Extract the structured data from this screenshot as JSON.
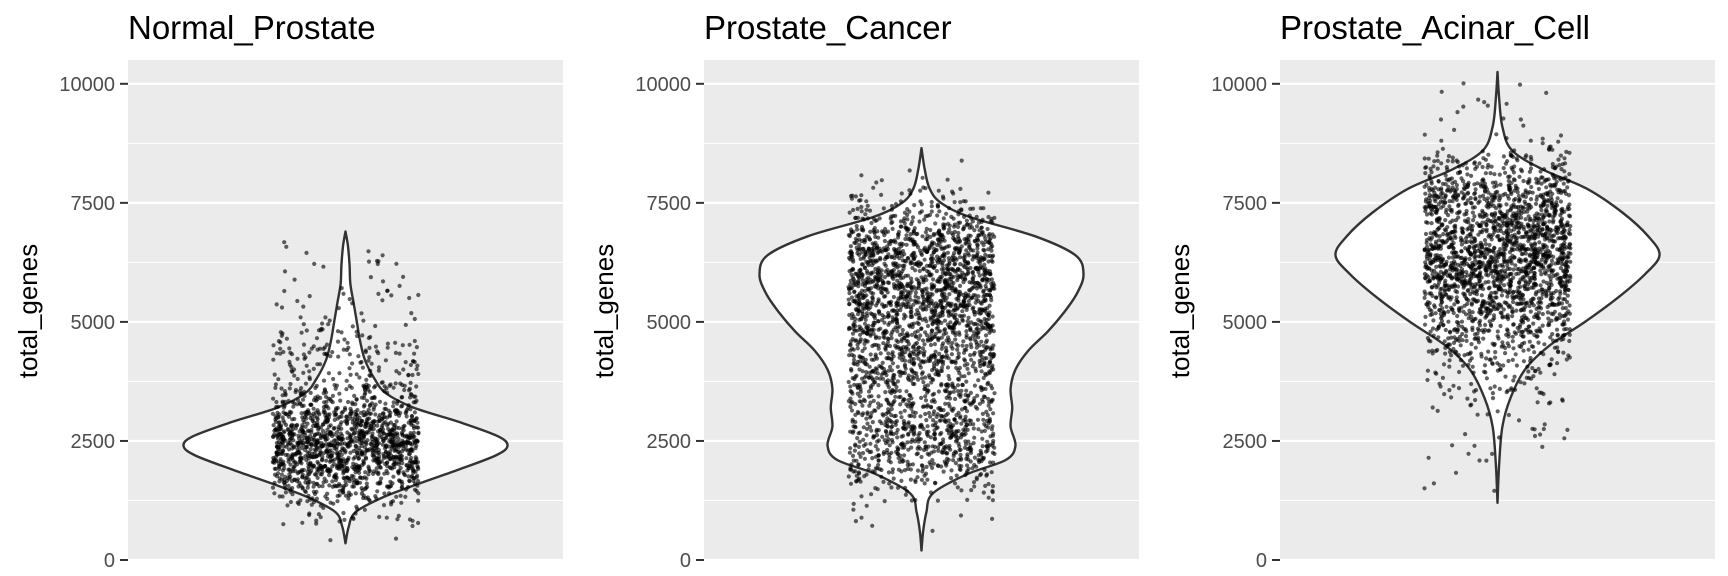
{
  "chart_data": [
    {
      "type": "violin",
      "title": "Normal_Prostate",
      "xlabel": "",
      "ylabel": "total_genes",
      "ylim": [
        0,
        10500
      ],
      "yticks": [
        0,
        2500,
        5000,
        7500,
        10000
      ],
      "y_tick_labels": [
        "0",
        "2500",
        "5000",
        "7500",
        "10000"
      ],
      "grid": true,
      "min": 350,
      "max": 6900,
      "median": 2600,
      "mode": 2400,
      "point_count": 1600,
      "density_profile": [
        [
          350,
          0.0
        ],
        [
          700,
          0.02
        ],
        [
          1000,
          0.06
        ],
        [
          1300,
          0.22
        ],
        [
          1600,
          0.45
        ],
        [
          1900,
          0.7
        ],
        [
          2200,
          0.93
        ],
        [
          2400,
          1.0
        ],
        [
          2600,
          0.94
        ],
        [
          2900,
          0.7
        ],
        [
          3200,
          0.42
        ],
        [
          3500,
          0.25
        ],
        [
          3800,
          0.18
        ],
        [
          4200,
          0.12
        ],
        [
          4600,
          0.09
        ],
        [
          5000,
          0.07
        ],
        [
          5400,
          0.05
        ],
        [
          5800,
          0.03
        ],
        [
          6200,
          0.025
        ],
        [
          6600,
          0.015
        ],
        [
          6900,
          0.0
        ]
      ],
      "color_outline": "#333333",
      "color_points": "#000000",
      "color_panel": "#ebebeb"
    },
    {
      "type": "violin",
      "title": "Prostate_Cancer",
      "xlabel": "",
      "ylabel": "total_genes",
      "ylim": [
        0,
        10500
      ],
      "yticks": [
        0,
        2500,
        5000,
        7500,
        10000
      ],
      "y_tick_labels": [
        "0",
        "2500",
        "5000",
        "7500",
        "10000"
      ],
      "grid": true,
      "min": 200,
      "max": 8650,
      "median": 4700,
      "mode": 6100,
      "point_count": 2600,
      "density_profile": [
        [
          200,
          0.0
        ],
        [
          600,
          0.01
        ],
        [
          1000,
          0.03
        ],
        [
          1400,
          0.07
        ],
        [
          1800,
          0.28
        ],
        [
          2100,
          0.52
        ],
        [
          2400,
          0.58
        ],
        [
          2800,
          0.55
        ],
        [
          3200,
          0.56
        ],
        [
          3600,
          0.55
        ],
        [
          4000,
          0.58
        ],
        [
          4400,
          0.66
        ],
        [
          4800,
          0.78
        ],
        [
          5200,
          0.88
        ],
        [
          5600,
          0.96
        ],
        [
          6000,
          1.0
        ],
        [
          6400,
          0.95
        ],
        [
          6800,
          0.7
        ],
        [
          7200,
          0.3
        ],
        [
          7500,
          0.12
        ],
        [
          7800,
          0.05
        ],
        [
          8200,
          0.02
        ],
        [
          8650,
          0.0
        ]
      ],
      "color_outline": "#333333",
      "color_points": "#000000",
      "color_panel": "#ebebeb"
    },
    {
      "type": "violin",
      "title": "Prostate_Acinar_Cell",
      "xlabel": "",
      "ylabel": "total_genes",
      "ylim": [
        0,
        10500
      ],
      "yticks": [
        0,
        2500,
        5000,
        7500,
        10000
      ],
      "y_tick_labels": [
        "0",
        "2500",
        "5000",
        "7500",
        "10000"
      ],
      "grid": true,
      "min": 1200,
      "max": 10250,
      "median": 6300,
      "mode": 6400,
      "point_count": 2200,
      "density_profile": [
        [
          1200,
          0.0
        ],
        [
          2000,
          0.01
        ],
        [
          2800,
          0.03
        ],
        [
          3400,
          0.08
        ],
        [
          4000,
          0.17
        ],
        [
          4500,
          0.32
        ],
        [
          5000,
          0.54
        ],
        [
          5500,
          0.74
        ],
        [
          6000,
          0.91
        ],
        [
          6400,
          1.0
        ],
        [
          6800,
          0.93
        ],
        [
          7300,
          0.77
        ],
        [
          7800,
          0.55
        ],
        [
          8200,
          0.28
        ],
        [
          8600,
          0.09
        ],
        [
          9100,
          0.03
        ],
        [
          9700,
          0.01
        ],
        [
          10250,
          0.0
        ]
      ],
      "color_outline": "#333333",
      "color_points": "#000000",
      "color_panel": "#ebebeb"
    }
  ]
}
